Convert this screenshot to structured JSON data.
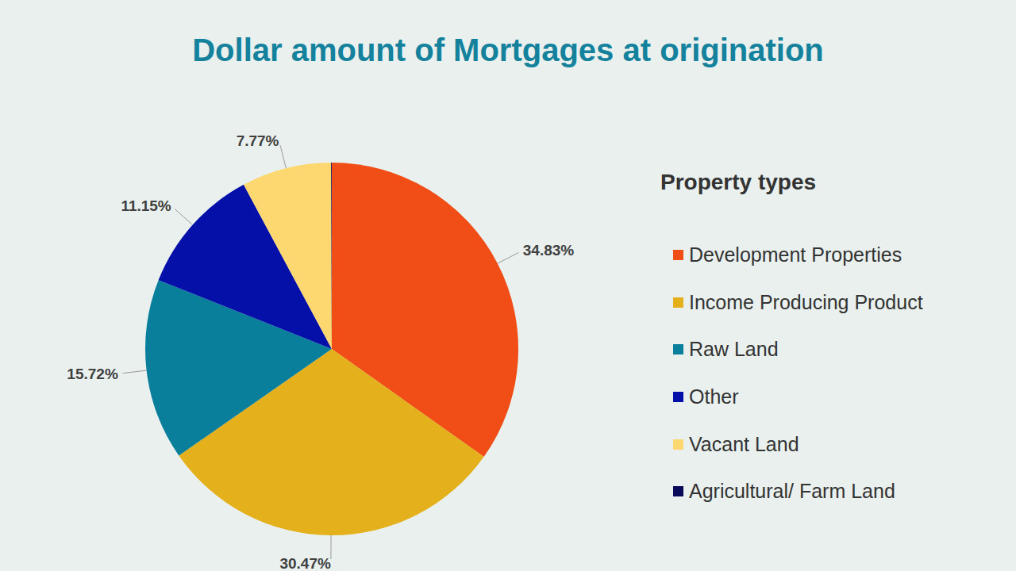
{
  "chart_data": {
    "type": "pie",
    "title": "Dollar amount of Mortgages at origination",
    "legend_title": "Property types",
    "categories": [
      "Development Properties",
      "Income Producing Product",
      "Raw Land",
      "Other",
      "Vacant Land",
      "Agricultural/ Farm Land"
    ],
    "values": [
      34.83,
      30.47,
      15.72,
      11.15,
      7.77,
      0.06
    ],
    "value_labels": [
      "34.83%",
      "30.47%",
      "15.72%",
      "11.15%",
      "7.77%",
      null
    ],
    "colors": [
      "#F04E16",
      "#E4B11C",
      "#0A7F9C",
      "#0410A8",
      "#FDD870",
      "#0A0A5A"
    ],
    "data_labels": true,
    "legend": "right"
  }
}
